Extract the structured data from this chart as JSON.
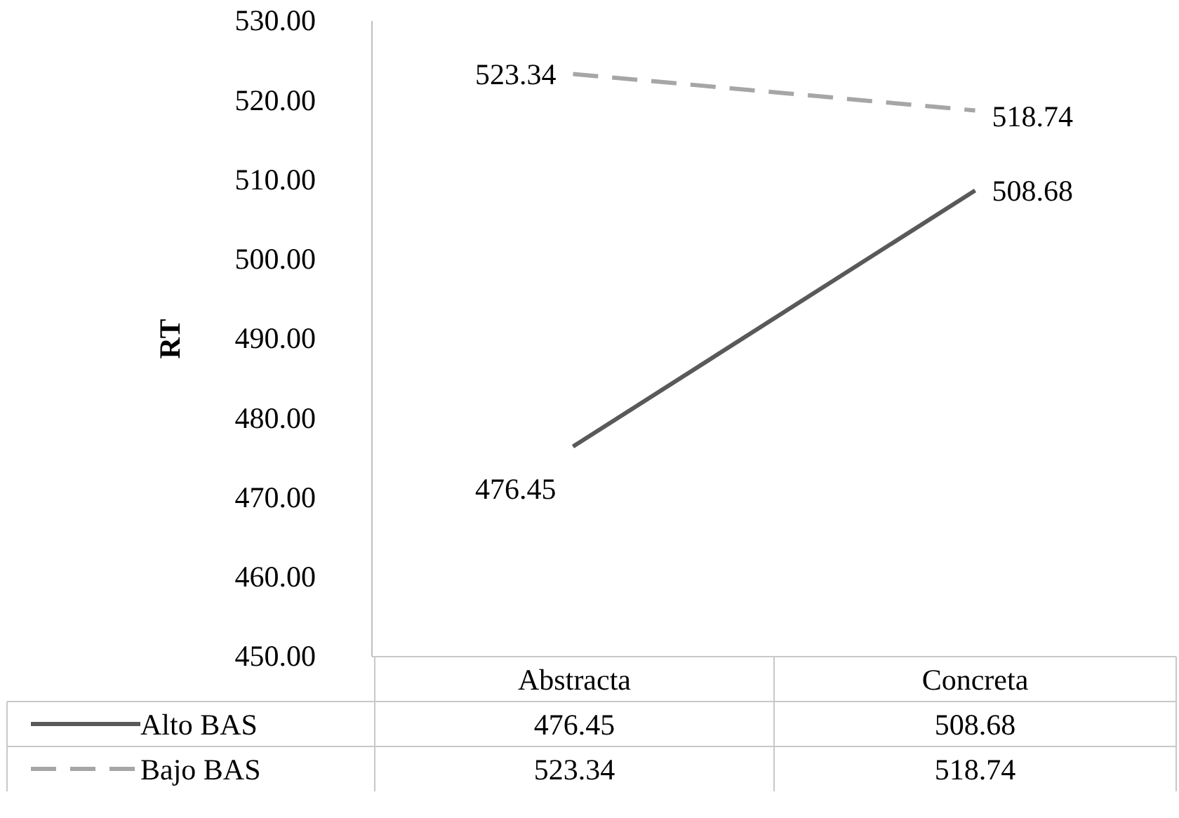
{
  "chart_data": {
    "type": "line",
    "ylabel": "RT",
    "categories": [
      "Abstracta",
      "Concreta"
    ],
    "series": [
      {
        "name": "Alto BAS",
        "color": "#595959",
        "line_style": "solid",
        "values": [
          476.45,
          508.68
        ],
        "value_labels": [
          "476.45",
          "508.68"
        ]
      },
      {
        "name": "Bajo BAS",
        "color": "#a6a6a6",
        "line_style": "dashed",
        "values": [
          523.34,
          518.74
        ],
        "value_labels": [
          "523.34",
          "518.74"
        ]
      }
    ],
    "ylim": [
      450,
      530
    ],
    "yticks": [
      {
        "value": 450,
        "label": "450.00"
      },
      {
        "value": 460,
        "label": "460.00"
      },
      {
        "value": 470,
        "label": "470.00"
      },
      {
        "value": 480,
        "label": "480.00"
      },
      {
        "value": 490,
        "label": "490.00"
      },
      {
        "value": 500,
        "label": "500.00"
      },
      {
        "value": 510,
        "label": "510.00"
      },
      {
        "value": 520,
        "label": "520.00"
      },
      {
        "value": 530,
        "label": "530.00"
      }
    ],
    "legend": "bottom",
    "grid": false,
    "marker": "none"
  }
}
